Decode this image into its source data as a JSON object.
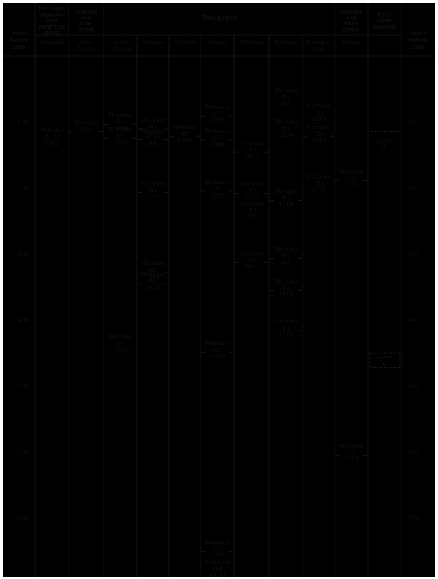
{
  "chart_data": {
    "type": "table",
    "axis": {
      "label_lines": [
        "Years",
        "before",
        "1968"
      ],
      "ticks": [
        100,
        200,
        300,
        400,
        500,
        600,
        700
      ],
      "range": [
        0,
        770
      ]
    },
    "source_groups": [
      {
        "id": "sigafoos",
        "label_lines": [
          "This paper",
          "Sigafoos",
          "and",
          "Hendricks",
          "(1961)"
        ],
        "columns": [
          "nisqually"
        ]
      },
      {
        "id": "crandell1",
        "label_lines": [
          "Crandell",
          "and",
          "Miller",
          "(1964)"
        ],
        "columns": [
          "vantrump"
        ]
      },
      {
        "id": "thispaper",
        "label_lines": [
          "This paper"
        ],
        "columns": [
          "southtahoma",
          "tahoma",
          "puyallup",
          "carbon",
          "winthrop",
          "emmons",
          "ohanapecosh"
        ]
      },
      {
        "id": "crandell2",
        "label_lines": [
          "Crandell",
          "and",
          "Miller",
          "(1964)"
        ],
        "columns": [
          "cowlitz"
        ]
      },
      {
        "id": "pyro",
        "label_lines": [
          "Pyro-",
          "clastic",
          "deposits"
        ],
        "columns": [
          "pyro"
        ]
      }
    ],
    "columns": [
      {
        "id": "nisqually",
        "label_lines": [
          "Nisqually"
        ]
      },
      {
        "id": "vantrump",
        "label_lines": [
          "Van",
          "Trump"
        ]
      },
      {
        "id": "southtahoma",
        "label_lines": [
          "South",
          "Tahoma"
        ]
      },
      {
        "id": "tahoma",
        "label_lines": [
          "Tahoma"
        ]
      },
      {
        "id": "puyallup",
        "label_lines": [
          "Puyallup"
        ]
      },
      {
        "id": "carbon",
        "label_lines": [
          "Carbon"
        ]
      },
      {
        "id": "winthrop",
        "label_lines": [
          "Winthrop"
        ]
      },
      {
        "id": "emmons",
        "label_lines": [
          "Emmons"
        ]
      },
      {
        "id": "ohanapecosh",
        "label_lines": [
          "Ohanape-",
          "cosh"
        ]
      },
      {
        "id": "cowlitz",
        "label_lines": [
          "Cowlitz"
        ]
      },
      {
        "id": "pyro",
        "label_lines": []
      }
    ],
    "moraines": [
      {
        "column": "nisqually",
        "year": 1842,
        "lines": [
          "Moraine",
          "(E, L)",
          "1842"
        ]
      },
      {
        "column": "vantrump",
        "year": 1853,
        "lines": [
          "Moraine",
          "1853"
        ]
      },
      {
        "column": "southtahoma",
        "year": 1864,
        "lines": [
          "Moraine",
          "(L)",
          "1864"
        ]
      },
      {
        "column": "southtahoma",
        "year": 1843,
        "lines": [
          "Moraine",
          "(E)",
          "1843"
        ]
      },
      {
        "column": "southtahoma",
        "year": 1528,
        "lines": [
          "Moraine",
          "(E)",
          "1528"
        ]
      },
      {
        "column": "tahoma",
        "year": 1857,
        "lines": [
          "Moraine",
          "(L)",
          "1857"
        ]
      },
      {
        "column": "tahoma",
        "year": 1841,
        "lines": [
          "Moraine",
          "(E, L)",
          "1841"
        ]
      },
      {
        "column": "tahoma",
        "year": 1761,
        "lines": [
          "Moraine",
          "(L)",
          "1761"
        ]
      },
      {
        "column": "tahoma",
        "year": 1640,
        "lines": [
          "Moraine",
          "(L)",
          "1640"
        ]
      },
      {
        "column": "tahoma",
        "year": 1623,
        "lines": [
          "Moraine",
          "(E)",
          "1623"
        ]
      },
      {
        "column": "puyallup",
        "year": 1846,
        "lines": [
          "Moraine",
          "(E)",
          "1846"
        ]
      },
      {
        "column": "carbon",
        "year": 1876,
        "lines": [
          "Moraine",
          "(L)",
          "1876"
        ]
      },
      {
        "column": "carbon",
        "year": 1840,
        "lines": [
          "Moraine",
          "(L)",
          "1840"
        ]
      },
      {
        "column": "carbon",
        "year": 1763,
        "lines": [
          "Moraine",
          "(E)",
          "1763"
        ]
      },
      {
        "column": "carbon",
        "year": 1519,
        "lines": [
          "Moraine",
          "(L)",
          "1519"
        ]
      },
      {
        "column": "carbon",
        "year": 1217,
        "lines": [
          "Moraine",
          "(L)",
          "1217",
          "(Crandell",
          "and",
          "Miller",
          "1964)"
        ]
      },
      {
        "column": "winthrop",
        "year": 1822,
        "lines": [
          "Moraine",
          "(E)",
          "1822"
        ]
      },
      {
        "column": "winthrop",
        "year": 1760,
        "lines": [
          "Moraine",
          "(E)",
          "1760"
        ]
      },
      {
        "column": "winthrop",
        "year": 1730,
        "lines": [
          "Moraine",
          "(E)",
          "1730"
        ]
      },
      {
        "column": "winthrop",
        "year": 1655,
        "lines": [
          "Moraine",
          "(L)",
          "1655"
        ]
      },
      {
        "column": "emmons",
        "year": 1901,
        "lines": [
          "Moraine",
          "(E)",
          "1901"
        ]
      },
      {
        "column": "emmons",
        "year": 1854,
        "lines": [
          "Moraine",
          "(E)",
          "1854"
        ]
      },
      {
        "column": "emmons",
        "year": 1749,
        "lines": [
          "Moraine",
          "(E)",
          "1749"
        ]
      },
      {
        "column": "emmons",
        "year": 1661,
        "lines": [
          "Moraine",
          "(E)",
          "1661"
        ]
      },
      {
        "column": "emmons",
        "year": 1613,
        "lines": [
          "Moraine",
          "(L)",
          "1613"
        ]
      },
      {
        "column": "emmons",
        "year": 1552,
        "lines": [
          "Moraine",
          "(L)",
          "1552"
        ]
      },
      {
        "column": "ohanapecosh",
        "year": 1878,
        "lines": [
          "Moraine",
          "(E)",
          "1878"
        ]
      },
      {
        "column": "ohanapecosh",
        "year": 1846,
        "lines": [
          "Moraine",
          "(E)",
          "1846"
        ]
      },
      {
        "column": "ohanapecosh",
        "year": 1771,
        "lines": [
          "Moraine",
          "(E)",
          "1771"
        ]
      },
      {
        "column": "cowlitz",
        "year": 1779,
        "lines": [
          "Moraine",
          "(E)",
          "1779"
        ]
      },
      {
        "column": "cowlitz",
        "year": 1363,
        "lines": [
          "Moraine",
          "(E)",
          "1363"
        ]
      }
    ],
    "layers": [
      {
        "column": "pyro",
        "label_lines": [
          "Layer",
          "X"
        ],
        "years_before_1968": [
          115,
          150
        ]
      },
      {
        "column": "pyro",
        "label_lines": [
          "Layer",
          "W"
        ],
        "years_before_1968": [
          450,
          472
        ]
      }
    ]
  }
}
